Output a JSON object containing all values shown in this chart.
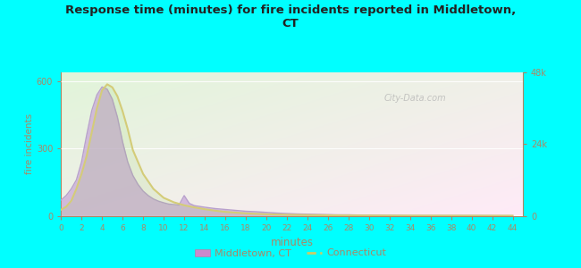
{
  "title": "Response time (minutes) for fire incidents reported in Middletown,\nCT",
  "xlabel": "minutes",
  "ylabel": "fire incidents",
  "bg_color": "#00FFFF",
  "fill_color": "#c8a8d8",
  "fill_alpha": 0.75,
  "line_color_ct": "#d4cc78",
  "line_color_fill": "#b8a0cc",
  "xlim": [
    0,
    45
  ],
  "ylim_left": [
    0,
    640
  ],
  "ylim_right": [
    0,
    48000
  ],
  "xticks": [
    0,
    2,
    4,
    6,
    8,
    10,
    12,
    14,
    16,
    18,
    20,
    22,
    24,
    26,
    28,
    30,
    32,
    34,
    36,
    38,
    40,
    42,
    44
  ],
  "yticks_left": [
    0,
    300,
    600
  ],
  "yticks_right": [
    0,
    24000,
    48000
  ],
  "ytick_labels_right": [
    "0",
    "24k",
    "48k"
  ],
  "watermark": "City-Data.com",
  "legend_middletown_color": "#cc88cc",
  "legend_ct_color": "#cccc66",
  "tick_color": "#aa8866",
  "label_color": "#aa8866",
  "middletown_x": [
    0,
    0.5,
    1,
    1.5,
    2,
    2.5,
    3,
    3.5,
    4,
    4.5,
    5,
    5.5,
    6,
    6.5,
    7,
    7.5,
    8,
    8.5,
    9,
    9.5,
    10,
    10.5,
    11,
    11.5,
    12,
    12.5,
    13,
    14,
    15,
    16,
    17,
    18,
    19,
    20,
    21,
    22,
    23,
    24,
    25,
    26,
    27,
    28,
    29,
    30,
    32,
    34,
    36,
    38,
    40,
    44
  ],
  "middletown_y": [
    70,
    90,
    120,
    160,
    240,
    360,
    470,
    540,
    575,
    565,
    520,
    440,
    330,
    240,
    180,
    140,
    110,
    90,
    75,
    65,
    58,
    52,
    50,
    48,
    90,
    55,
    45,
    38,
    32,
    28,
    24,
    20,
    18,
    15,
    12,
    10,
    8,
    7,
    6,
    5,
    4,
    4,
    3,
    3,
    2,
    1,
    1,
    1,
    1,
    0
  ],
  "ct_x": [
    0,
    0.5,
    1,
    1.5,
    2,
    2.5,
    3,
    3.5,
    4,
    4.5,
    5,
    5.5,
    6,
    6.5,
    7,
    8,
    9,
    10,
    11,
    12,
    13,
    14,
    15,
    16,
    18,
    20,
    22,
    24,
    26,
    28,
    30,
    32,
    34,
    36,
    38,
    40,
    42,
    44
  ],
  "ct_y_right": [
    2000,
    3000,
    5000,
    9000,
    14000,
    20000,
    28000,
    36000,
    42000,
    44000,
    43000,
    40000,
    35000,
    29000,
    22000,
    14000,
    9000,
    6000,
    4500,
    3500,
    2800,
    2200,
    1700,
    1300,
    800,
    500,
    320,
    220,
    150,
    100,
    70,
    50,
    35,
    25,
    18,
    13,
    9,
    7
  ]
}
